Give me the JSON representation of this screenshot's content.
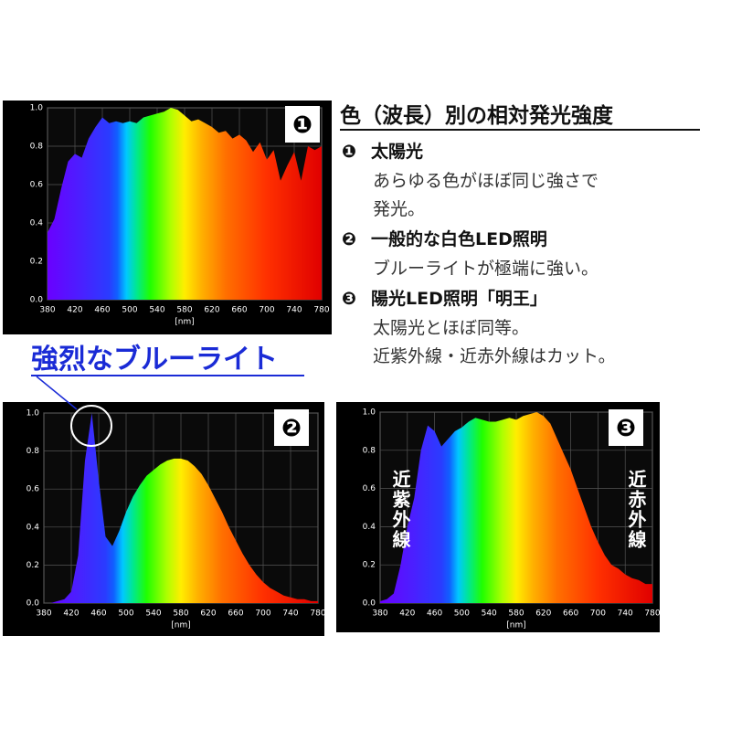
{
  "text_panel": {
    "title": "色（波長）別の相対発光強度",
    "items": [
      {
        "number": "❶",
        "name": "太陽光",
        "lines": [
          "あらゆる色がほぼ同じ強さで",
          "発光。"
        ]
      },
      {
        "number": "❷",
        "name": "一般的な白色LED照明",
        "lines": [
          "ブルーライトが極端に強い。"
        ]
      },
      {
        "number": "❸",
        "name": "陽光LED照明「明王」",
        "lines": [
          "太陽光とほぼ同等。",
          "近紫外線・近赤外線はカット。"
        ]
      }
    ]
  },
  "callout": "強烈なブルーライト",
  "chart_data": [
    {
      "type": "area",
      "badge": "❶",
      "xlabel": "[nm]",
      "x": [
        380,
        390,
        400,
        410,
        420,
        430,
        440,
        450,
        460,
        470,
        480,
        490,
        500,
        510,
        520,
        530,
        540,
        550,
        560,
        570,
        580,
        590,
        600,
        610,
        620,
        630,
        640,
        650,
        660,
        670,
        680,
        690,
        700,
        710,
        720,
        730,
        740,
        750,
        760,
        770,
        780
      ],
      "values": [
        0.35,
        0.42,
        0.58,
        0.72,
        0.76,
        0.74,
        0.84,
        0.9,
        0.95,
        0.92,
        0.93,
        0.92,
        0.93,
        0.92,
        0.95,
        0.96,
        0.97,
        0.98,
        1.0,
        0.99,
        0.96,
        0.93,
        0.94,
        0.92,
        0.9,
        0.87,
        0.88,
        0.84,
        0.86,
        0.83,
        0.77,
        0.82,
        0.73,
        0.78,
        0.62,
        0.7,
        0.77,
        0.62,
        0.8,
        0.78,
        0.8
      ],
      "xlim": [
        380,
        780
      ],
      "xticks": [
        380,
        420,
        460,
        500,
        540,
        580,
        620,
        660,
        700,
        740,
        780
      ],
      "ylim": [
        0,
        1
      ],
      "yticks": [
        {
          "value": 0,
          "label": "0.0"
        },
        {
          "value": 0.2,
          "label": "0.2"
        },
        {
          "value": 0.4,
          "label": "0.4"
        },
        {
          "value": 0.6,
          "label": "0.6"
        },
        {
          "value": 0.8,
          "label": "0.8"
        },
        {
          "value": 1,
          "label": "1.0"
        }
      ],
      "grid": true
    },
    {
      "type": "area",
      "badge": "❷",
      "xlabel": "[nm]",
      "x": [
        380,
        390,
        400,
        410,
        420,
        430,
        440,
        450,
        460,
        470,
        480,
        490,
        500,
        510,
        520,
        530,
        540,
        550,
        560,
        570,
        580,
        590,
        600,
        610,
        620,
        630,
        640,
        650,
        660,
        670,
        680,
        690,
        700,
        710,
        720,
        730,
        740,
        750,
        760,
        770,
        780
      ],
      "values": [
        0,
        0,
        0.01,
        0.02,
        0.06,
        0.25,
        0.75,
        1.0,
        0.65,
        0.35,
        0.3,
        0.38,
        0.48,
        0.56,
        0.62,
        0.67,
        0.7,
        0.73,
        0.75,
        0.76,
        0.76,
        0.75,
        0.72,
        0.68,
        0.62,
        0.55,
        0.48,
        0.4,
        0.33,
        0.26,
        0.2,
        0.15,
        0.11,
        0.08,
        0.06,
        0.04,
        0.03,
        0.02,
        0.02,
        0.01,
        0.01
      ],
      "xlim": [
        380,
        780
      ],
      "xticks": [
        380,
        420,
        460,
        500,
        540,
        580,
        620,
        660,
        700,
        740,
        780
      ],
      "ylim": [
        0,
        1
      ],
      "yticks": [
        {
          "value": 0,
          "label": "0.0"
        },
        {
          "value": 0.2,
          "label": "0.2"
        },
        {
          "value": 0.4,
          "label": "0.4"
        },
        {
          "value": 0.6,
          "label": "0.6"
        },
        {
          "value": 0.8,
          "label": "0.8"
        },
        {
          "value": 1,
          "label": "1.0"
        }
      ],
      "grid": true
    },
    {
      "type": "area",
      "badge": "❸",
      "xlabel": "[nm]",
      "annotations": [
        "近紫外線",
        "近赤外線"
      ],
      "x": [
        380,
        390,
        400,
        410,
        420,
        430,
        440,
        450,
        460,
        470,
        480,
        490,
        500,
        510,
        520,
        530,
        540,
        550,
        560,
        570,
        580,
        590,
        600,
        610,
        620,
        630,
        640,
        650,
        660,
        670,
        680,
        690,
        700,
        710,
        720,
        730,
        740,
        750,
        760,
        770,
        780
      ],
      "values": [
        0.01,
        0.02,
        0.05,
        0.2,
        0.4,
        0.55,
        0.8,
        0.93,
        0.9,
        0.82,
        0.86,
        0.9,
        0.92,
        0.95,
        0.97,
        0.96,
        0.95,
        0.95,
        0.96,
        0.97,
        0.96,
        0.98,
        0.99,
        1.0,
        0.98,
        0.94,
        0.86,
        0.78,
        0.7,
        0.6,
        0.5,
        0.4,
        0.32,
        0.25,
        0.2,
        0.18,
        0.15,
        0.13,
        0.12,
        0.1,
        0.1
      ],
      "xlim": [
        380,
        780
      ],
      "xticks": [
        380,
        420,
        460,
        500,
        540,
        580,
        620,
        660,
        700,
        740,
        780
      ],
      "ylim": [
        0,
        1
      ],
      "yticks": [
        {
          "value": 0,
          "label": "0.0"
        },
        {
          "value": 0.2,
          "label": "0.2"
        },
        {
          "value": 0.4,
          "label": "0.4"
        },
        {
          "value": 0.6,
          "label": "0.6"
        },
        {
          "value": 0.8,
          "label": "0.8"
        },
        {
          "value": 1,
          "label": "1.0"
        }
      ],
      "grid": true
    }
  ]
}
